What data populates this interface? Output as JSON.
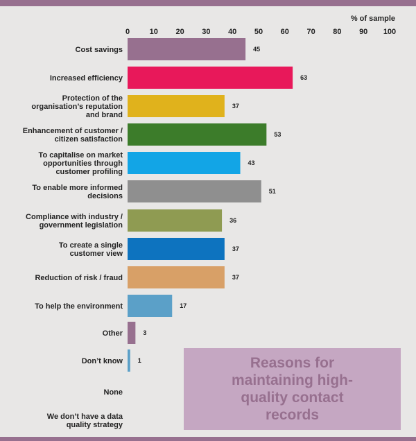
{
  "chart_data": {
    "type": "bar",
    "orientation": "horizontal",
    "title": "Reasons for maintaining high-quality contact records",
    "xlabel": "% of sample",
    "xlim": [
      0,
      100
    ],
    "xticks": [
      "0",
      "10",
      "20",
      "30",
      "40",
      "50",
      "60",
      "70",
      "80",
      "90",
      "100"
    ],
    "categories": [
      "Cost savings",
      "Increased efficiency",
      "Protection of the organisation’s reputation and brand",
      "Enhancement of customer / citizen satisfaction",
      "To capitalise on market opportunities through customer profiling",
      "To enable more informed decisions",
      "Compliance with industry / government legislation",
      "To create a single customer view",
      "Reduction of risk / fraud",
      "To help the environment",
      "Other",
      "Don’t know",
      "None",
      "We don’t have a data quality strategy"
    ],
    "values": [
      45,
      63,
      37,
      53,
      43,
      51,
      36,
      37,
      37,
      17,
      3,
      1,
      null,
      null
    ],
    "value_labels": [
      "45",
      "63",
      "37",
      "53",
      "43",
      "51",
      "36",
      "37",
      "37",
      "17",
      "3",
      "1",
      "",
      ""
    ],
    "colors": [
      "#97708f",
      "#e8185a",
      "#e0b21c",
      "#3c7c2a",
      "#12a5e6",
      "#8f8f8f",
      "#8f9b52",
      "#0d73bf",
      "#d8a067",
      "#5ba0c8",
      "#97708f",
      "#5ba0c8",
      "#97708f",
      "#97708f"
    ],
    "grid": false,
    "legend": "none"
  }
}
